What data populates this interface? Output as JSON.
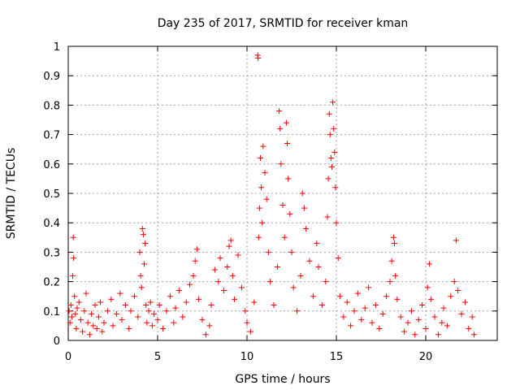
{
  "chart_data": {
    "type": "scatter",
    "title": "Day 235 of 2017, SRMTID for receiver kman",
    "xlabel": "GPS time / hours",
    "ylabel": "SRMTID / TECUs",
    "xlim": [
      0,
      24
    ],
    "ylim": [
      0,
      1
    ],
    "xticks": [
      0,
      5,
      10,
      15,
      20
    ],
    "xtick_labels": [
      "0",
      "5",
      "10",
      "15",
      "20"
    ],
    "yticks": [
      0,
      0.1,
      0.2,
      0.3,
      0.4,
      0.5,
      0.6,
      0.7,
      0.8,
      0.9,
      1
    ],
    "ytick_labels": [
      "0",
      "0.1",
      "0.2",
      "0.3",
      "0.4",
      "0.5",
      "0.6",
      "0.7",
      "0.8",
      "0.9",
      "1"
    ],
    "grid": true,
    "marker": "+",
    "colors": {
      "points": "#ff0000",
      "grid": "#a0a0a0",
      "axes": "#000000"
    },
    "series": [
      {
        "name": "SRMTID",
        "points": [
          [
            0.05,
            0.1
          ],
          [
            0.1,
            0.06
          ],
          [
            0.15,
            0.12
          ],
          [
            0.2,
            0.08
          ],
          [
            0.25,
            0.22
          ],
          [
            0.28,
            0.35
          ],
          [
            0.3,
            0.28
          ],
          [
            0.35,
            0.15
          ],
          [
            0.4,
            0.09
          ],
          [
            0.45,
            0.04
          ],
          [
            0.5,
            0.11
          ],
          [
            0.6,
            0.13
          ],
          [
            0.7,
            0.07
          ],
          [
            0.8,
            0.03
          ],
          [
            0.9,
            0.1
          ],
          [
            1.0,
            0.16
          ],
          [
            1.1,
            0.06
          ],
          [
            1.2,
            0.02
          ],
          [
            1.3,
            0.09
          ],
          [
            1.4,
            0.05
          ],
          [
            1.5,
            0.12
          ],
          [
            1.6,
            0.04
          ],
          [
            1.7,
            0.08
          ],
          [
            1.8,
            0.13
          ],
          [
            1.9,
            0.03
          ],
          [
            2.0,
            0.06
          ],
          [
            2.2,
            0.1
          ],
          [
            2.4,
            0.14
          ],
          [
            2.5,
            0.05
          ],
          [
            2.7,
            0.09
          ],
          [
            2.9,
            0.16
          ],
          [
            3.0,
            0.07
          ],
          [
            3.2,
            0.12
          ],
          [
            3.4,
            0.04
          ],
          [
            3.5,
            0.1
          ],
          [
            3.7,
            0.15
          ],
          [
            3.9,
            0.08
          ],
          [
            4.0,
            0.3
          ],
          [
            4.05,
            0.22
          ],
          [
            4.1,
            0.18
          ],
          [
            4.15,
            0.38
          ],
          [
            4.2,
            0.36
          ],
          [
            4.25,
            0.26
          ],
          [
            4.3,
            0.33
          ],
          [
            4.35,
            0.12
          ],
          [
            4.4,
            0.06
          ],
          [
            4.5,
            0.1
          ],
          [
            4.6,
            0.13
          ],
          [
            4.7,
            0.05
          ],
          [
            4.8,
            0.09
          ],
          [
            5.0,
            0.07
          ],
          [
            5.1,
            0.12
          ],
          [
            5.3,
            0.04
          ],
          [
            5.5,
            0.1
          ],
          [
            5.7,
            0.15
          ],
          [
            5.9,
            0.06
          ],
          [
            6.0,
            0.11
          ],
          [
            6.2,
            0.17
          ],
          [
            6.4,
            0.08
          ],
          [
            6.6,
            0.13
          ],
          [
            6.8,
            0.19
          ],
          [
            7.0,
            0.22
          ],
          [
            7.1,
            0.27
          ],
          [
            7.2,
            0.31
          ],
          [
            7.3,
            0.14
          ],
          [
            7.5,
            0.07
          ],
          [
            7.7,
            0.02
          ],
          [
            7.9,
            0.05
          ],
          [
            8.0,
            0.12
          ],
          [
            8.2,
            0.24
          ],
          [
            8.4,
            0.2
          ],
          [
            8.5,
            0.28
          ],
          [
            8.7,
            0.17
          ],
          [
            8.9,
            0.25
          ],
          [
            9.0,
            0.32
          ],
          [
            9.1,
            0.34
          ],
          [
            9.2,
            0.22
          ],
          [
            9.3,
            0.14
          ],
          [
            9.5,
            0.29
          ],
          [
            9.7,
            0.18
          ],
          [
            9.9,
            0.1
          ],
          [
            10.0,
            0.06
          ],
          [
            10.2,
            0.03
          ],
          [
            10.4,
            0.13
          ],
          [
            10.6,
            0.97
          ],
          [
            10.62,
            0.96
          ],
          [
            10.65,
            0.35
          ],
          [
            10.7,
            0.45
          ],
          [
            10.75,
            0.62
          ],
          [
            10.8,
            0.52
          ],
          [
            10.85,
            0.4
          ],
          [
            10.9,
            0.66
          ],
          [
            11.0,
            0.57
          ],
          [
            11.1,
            0.48
          ],
          [
            11.2,
            0.3
          ],
          [
            11.3,
            0.2
          ],
          [
            11.5,
            0.12
          ],
          [
            11.7,
            0.25
          ],
          [
            11.8,
            0.78
          ],
          [
            11.85,
            0.72
          ],
          [
            11.9,
            0.6
          ],
          [
            12.0,
            0.46
          ],
          [
            12.1,
            0.35
          ],
          [
            12.2,
            0.74
          ],
          [
            12.25,
            0.67
          ],
          [
            12.3,
            0.55
          ],
          [
            12.4,
            0.43
          ],
          [
            12.5,
            0.3
          ],
          [
            12.6,
            0.18
          ],
          [
            12.8,
            0.1
          ],
          [
            13.0,
            0.22
          ],
          [
            13.1,
            0.5
          ],
          [
            13.2,
            0.45
          ],
          [
            13.3,
            0.38
          ],
          [
            13.5,
            0.27
          ],
          [
            13.7,
            0.15
          ],
          [
            13.9,
            0.33
          ],
          [
            14.0,
            0.25
          ],
          [
            14.2,
            0.12
          ],
          [
            14.4,
            0.2
          ],
          [
            14.5,
            0.42
          ],
          [
            14.55,
            0.55
          ],
          [
            14.6,
            0.77
          ],
          [
            14.65,
            0.7
          ],
          [
            14.7,
            0.62
          ],
          [
            14.75,
            0.59
          ],
          [
            14.8,
            0.81
          ],
          [
            14.85,
            0.72
          ],
          [
            14.9,
            0.64
          ],
          [
            14.95,
            0.52
          ],
          [
            15.0,
            0.4
          ],
          [
            15.1,
            0.28
          ],
          [
            15.2,
            0.15
          ],
          [
            15.4,
            0.08
          ],
          [
            15.6,
            0.13
          ],
          [
            15.8,
            0.05
          ],
          [
            16.0,
            0.1
          ],
          [
            16.2,
            0.16
          ],
          [
            16.4,
            0.07
          ],
          [
            16.6,
            0.11
          ],
          [
            16.8,
            0.18
          ],
          [
            17.0,
            0.06
          ],
          [
            17.2,
            0.12
          ],
          [
            17.4,
            0.04
          ],
          [
            17.6,
            0.09
          ],
          [
            17.8,
            0.15
          ],
          [
            18.0,
            0.2
          ],
          [
            18.1,
            0.27
          ],
          [
            18.2,
            0.35
          ],
          [
            18.25,
            0.33
          ],
          [
            18.3,
            0.22
          ],
          [
            18.4,
            0.14
          ],
          [
            18.6,
            0.08
          ],
          [
            18.8,
            0.03
          ],
          [
            19.0,
            0.06
          ],
          [
            19.2,
            0.1
          ],
          [
            19.4,
            0.02
          ],
          [
            19.6,
            0.07
          ],
          [
            19.8,
            0.12
          ],
          [
            20.0,
            0.04
          ],
          [
            20.1,
            0.18
          ],
          [
            20.2,
            0.26
          ],
          [
            20.3,
            0.14
          ],
          [
            20.5,
            0.08
          ],
          [
            20.7,
            0.02
          ],
          [
            20.9,
            0.06
          ],
          [
            21.0,
            0.11
          ],
          [
            21.2,
            0.05
          ],
          [
            21.4,
            0.15
          ],
          [
            21.6,
            0.2
          ],
          [
            21.7,
            0.34
          ],
          [
            21.8,
            0.17
          ],
          [
            22.0,
            0.09
          ],
          [
            22.2,
            0.13
          ],
          [
            22.4,
            0.04
          ],
          [
            22.6,
            0.08
          ],
          [
            22.7,
            0.02
          ]
        ]
      }
    ]
  }
}
